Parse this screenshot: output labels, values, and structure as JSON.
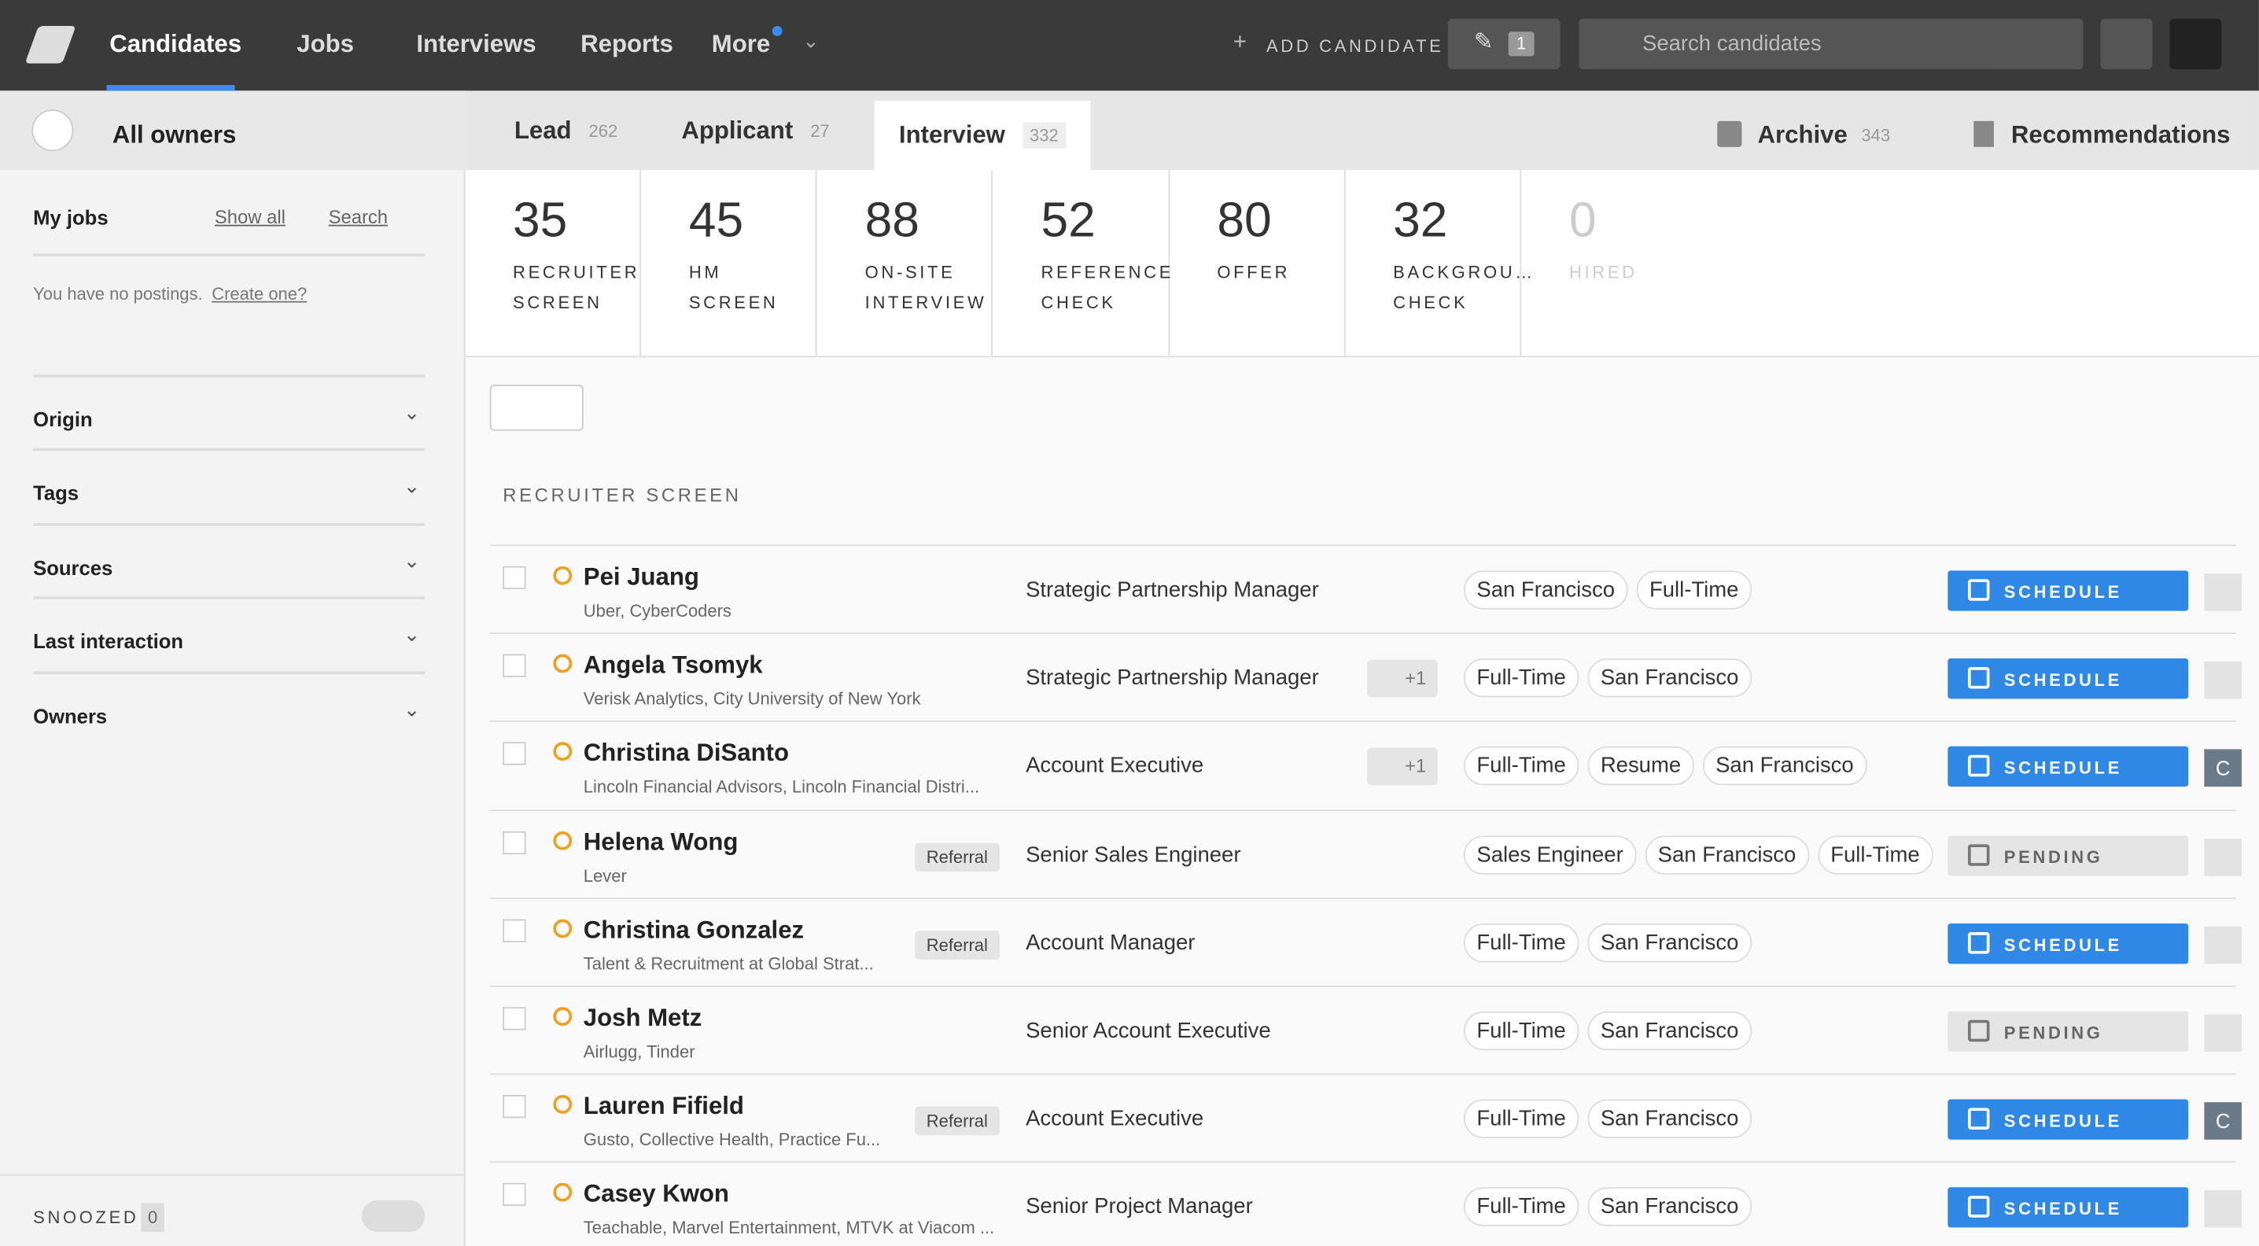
{
  "nav": {
    "items": [
      "Candidates",
      "Jobs",
      "Interviews",
      "Reports",
      "More"
    ],
    "add_candidate": "ADD CANDIDATE",
    "edit_count": "1",
    "search_placeholder": "Search candidates"
  },
  "sidebar": {
    "owners": "All owners",
    "my_jobs": "My jobs",
    "show_all": "Show all",
    "search": "Search",
    "no_postings": "You have no postings.",
    "create": "Create one?",
    "filters": [
      "Origin",
      "Tags",
      "Sources",
      "Last interaction",
      "Owners"
    ],
    "snoozed": "SNOOZED",
    "snoozed_count": "0"
  },
  "tabs": [
    {
      "label": "Lead",
      "count": "262"
    },
    {
      "label": "Applicant",
      "count": "27"
    },
    {
      "label": "Interview",
      "count": "332"
    }
  ],
  "archive": {
    "label": "Archive",
    "count": "343"
  },
  "recommendations": "Recommendations",
  "stages": [
    {
      "count": "35",
      "label": "RECRUITER SCREEN"
    },
    {
      "count": "45",
      "label": "HM SCREEN"
    },
    {
      "count": "88",
      "label": "ON-SITE INTERVIEW"
    },
    {
      "count": "52",
      "label": "REFERENCE CHECK"
    },
    {
      "count": "80",
      "label": "OFFER"
    },
    {
      "count": "32",
      "label": "BACKGROU… CHECK"
    },
    {
      "count": "0",
      "label": "HIRED"
    }
  ],
  "section_title": "RECRUITER SCREEN",
  "rows": [
    {
      "name": "Pei Juang",
      "companies": "Uber, CyberCoders",
      "referral": null,
      "title": "Strategic Partnership Manager",
      "extra": null,
      "tags": [
        "San Francisco",
        "Full-Time"
      ],
      "action": "SCHEDULE",
      "avatar": null
    },
    {
      "name": "Angela Tsomyk",
      "companies": "Verisk Analytics, City University of New York",
      "referral": null,
      "title": "Strategic Partnership Manager",
      "extra": "+1",
      "tags": [
        "Full-Time",
        "San Francisco"
      ],
      "action": "SCHEDULE",
      "avatar": null
    },
    {
      "name": "Christina DiSanto",
      "companies": "Lincoln Financial Advisors, Lincoln Financial Distri...",
      "referral": null,
      "title": "Account Executive",
      "extra": "+1",
      "tags": [
        "Full-Time",
        "Resume",
        "San Francisco"
      ],
      "action": "SCHEDULE",
      "avatar": "C"
    },
    {
      "name": "Helena Wong",
      "companies": "Lever",
      "referral": "Referral",
      "title": "Senior Sales Engineer",
      "extra": null,
      "tags": [
        "Sales Engineer",
        "San Francisco",
        "Full-Time"
      ],
      "action": "PENDING",
      "avatar": null
    },
    {
      "name": "Christina Gonzalez",
      "companies": "Talent & Recruitment at Global Strat...",
      "referral": "Referral",
      "title": "Account Manager",
      "extra": null,
      "tags": [
        "Full-Time",
        "San Francisco"
      ],
      "action": "SCHEDULE",
      "avatar": null
    },
    {
      "name": "Josh Metz",
      "companies": "Airlugg, Tinder",
      "referral": null,
      "title": "Senior Account Executive",
      "extra": null,
      "tags": [
        "Full-Time",
        "San Francisco"
      ],
      "action": "PENDING",
      "avatar": null
    },
    {
      "name": "Lauren Fifield",
      "companies": "Gusto, Collective Health, Practice Fu...",
      "referral": "Referral",
      "title": "Account Executive",
      "extra": null,
      "tags": [
        "Full-Time",
        "San Francisco"
      ],
      "action": "SCHEDULE",
      "avatar": "C"
    },
    {
      "name": "Casey Kwon",
      "companies": "Teachable, Marvel Entertainment, MTVK at Viacom ...",
      "referral": null,
      "title": "Senior Project Manager",
      "extra": null,
      "tags": [
        "Full-Time",
        "San Francisco"
      ],
      "action": "SCHEDULE",
      "avatar": null
    }
  ]
}
